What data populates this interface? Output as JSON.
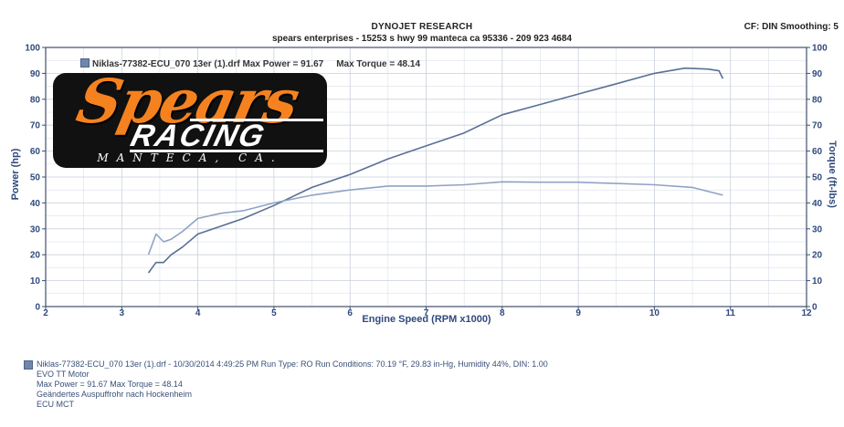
{
  "header": {
    "title": "DYNOJET RESEARCH",
    "subtitle": "spears enterprises - 15253 s hwy 99 manteca ca 95336 - 209 923 4684",
    "cf": "CF: DIN  Smoothing: 5"
  },
  "logo": {
    "line1": "Spears",
    "line2": "RACING",
    "line3": "MANTECA, CA."
  },
  "legend": {
    "file": "Niklas-77382-ECU_070 13er (1).drf Max Power = 91.67",
    "torque": "Max Torque = 48.14"
  },
  "footer": {
    "line1": "Niklas-77382-ECU_070 13er (1).drf - 10/30/2014 4:49:25 PM  Run Type: RO  Run Conditions: 70.19 °F, 29.83 in-Hg,  Humidity  44%, DIN: 1.00",
    "line2": "EVO TT Motor",
    "line3": "Max Power = 91.67  Max Torque = 48.14",
    "line4": "Geändertes Auspuffrohr nach Hockenheim",
    "line5": "ECU MCT"
  },
  "colors": {
    "grid": "#c9d0dc",
    "axis": "#3f4f6e",
    "power": "#5a6f96",
    "torque": "#8fa3c4",
    "label": "#2f4a7c"
  },
  "chart_data": {
    "type": "line",
    "xlabel": "Engine Speed (RPM x1000)",
    "ylabel_left": "Power (hp)",
    "ylabel_right": "Torque (ft-lbs)",
    "xlim": [
      2,
      12
    ],
    "ylim_left": [
      0,
      100
    ],
    "ylim_right": [
      0,
      100
    ],
    "grid": true,
    "x_ticks": [
      "2",
      "3",
      "4",
      "5",
      "6",
      "7",
      "8",
      "9",
      "10",
      "11",
      "12"
    ],
    "y_ticks": [
      "0",
      "10",
      "20",
      "30",
      "40",
      "50",
      "60",
      "70",
      "80",
      "90",
      "100"
    ],
    "series": [
      {
        "name": "Power",
        "axis": "left",
        "x": [
          3.35,
          3.45,
          3.55,
          3.65,
          3.8,
          4.0,
          4.3,
          4.6,
          5.0,
          5.5,
          6.0,
          6.5,
          7.0,
          7.5,
          8.0,
          8.5,
          9.0,
          9.5,
          10.0,
          10.4,
          10.7,
          10.85,
          10.9
        ],
        "y": [
          13,
          17,
          17,
          20,
          23,
          28,
          31,
          34,
          39,
          46,
          51,
          57,
          62,
          67,
          74,
          78,
          82,
          86,
          90,
          92,
          91.67,
          91,
          88
        ]
      },
      {
        "name": "Torque",
        "axis": "right",
        "x": [
          3.35,
          3.45,
          3.55,
          3.65,
          3.8,
          4.0,
          4.3,
          4.6,
          5.0,
          5.5,
          6.0,
          6.5,
          7.0,
          7.5,
          8.0,
          8.5,
          9.0,
          9.5,
          10.0,
          10.5,
          10.9
        ],
        "y": [
          20,
          28,
          25,
          26,
          29,
          34,
          36,
          37,
          40,
          43,
          45,
          46.5,
          46.5,
          47,
          48.14,
          48,
          48,
          47.5,
          47,
          46,
          43
        ]
      }
    ]
  }
}
